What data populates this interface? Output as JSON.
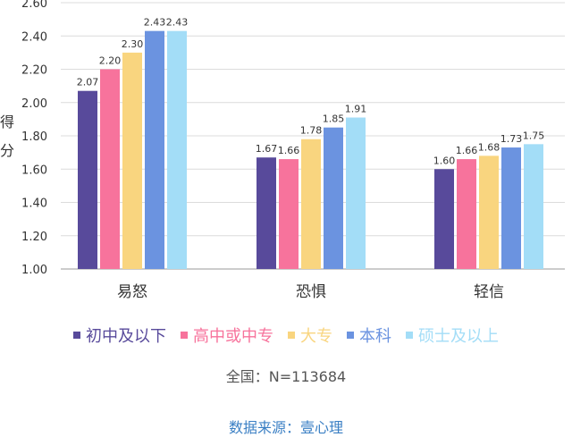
{
  "chart_data": {
    "type": "bar",
    "ylabel": "得分",
    "ylim": [
      1.0,
      2.6
    ],
    "yticks": [
      "1.00",
      "1.20",
      "1.40",
      "1.60",
      "1.80",
      "2.00",
      "2.20",
      "2.40",
      "2.60"
    ],
    "grid": true,
    "legend_position": "bottom",
    "categories": [
      "易怒",
      "恐惧",
      "轻信"
    ],
    "series": [
      {
        "name": "初中及以下",
        "color": "#584a9b",
        "values": [
          2.07,
          1.67,
          1.6
        ]
      },
      {
        "name": "高中或中专",
        "color": "#f7739c",
        "values": [
          2.2,
          1.66,
          1.66
        ]
      },
      {
        "name": "大专",
        "color": "#f9d57f",
        "values": [
          2.3,
          1.78,
          1.68
        ]
      },
      {
        "name": "本科",
        "color": "#6b93e0",
        "values": [
          2.43,
          1.85,
          1.73
        ]
      },
      {
        "name": "硕士及以上",
        "color": "#a3ddf7",
        "values": [
          2.43,
          1.91,
          1.75
        ]
      }
    ]
  },
  "notes": {
    "sample": "全国：N=113684",
    "source": "数据来源：壹心理"
  }
}
